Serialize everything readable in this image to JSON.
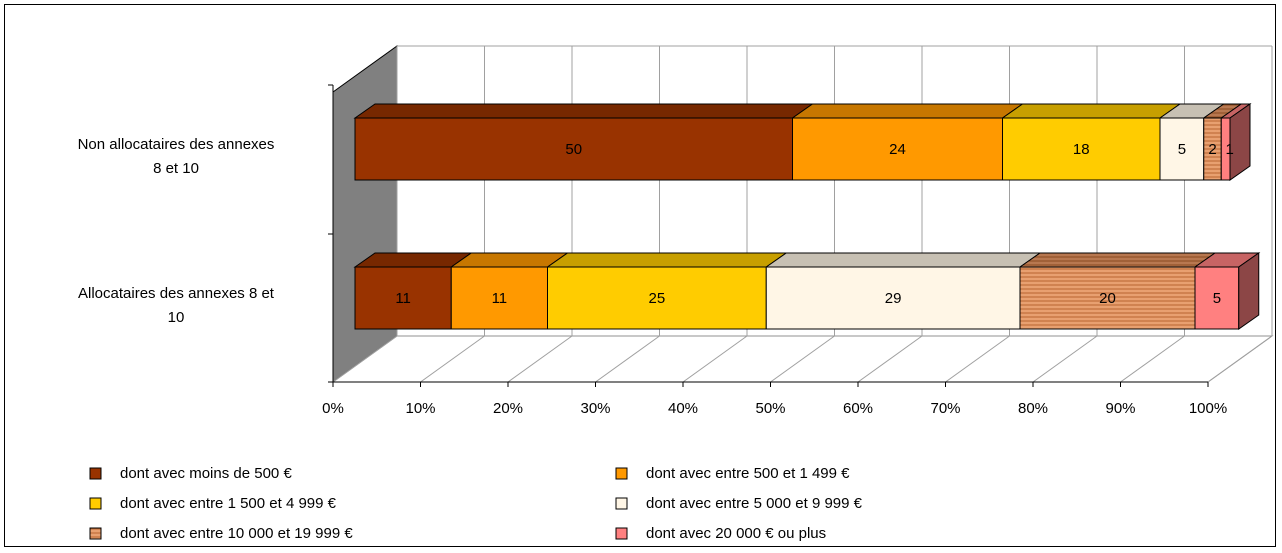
{
  "chart_data": {
    "type": "bar",
    "orientation": "horizontal",
    "stacked": "100%",
    "three_d": true,
    "grid": true,
    "legend_position": "bottom",
    "categories": [
      "Non allocataires des annexes 8 et 10",
      "Allocataires des annexes 8 et 10"
    ],
    "category_lines": [
      [
        "Non allocataires des annexes",
        "8 et 10"
      ],
      [
        "Allocataires des annexes 8 et",
        "10"
      ]
    ],
    "x_ticks": [
      "0%",
      "10%",
      "20%",
      "30%",
      "40%",
      "50%",
      "60%",
      "70%",
      "80%",
      "90%",
      "100%"
    ],
    "xlim": [
      0,
      100
    ],
    "series": [
      {
        "name": "dont avec moins de 500 €",
        "values": [
          50,
          11
        ],
        "color": "#993300",
        "pattern": "none"
      },
      {
        "name": "dont avec entre 500 et 1 499 €",
        "values": [
          24,
          11
        ],
        "color": "#FF9900",
        "pattern": "none"
      },
      {
        "name": "dont avec entre 1 500 et 4 999 €",
        "values": [
          18,
          25
        ],
        "color": "#FFCC00",
        "pattern": "none"
      },
      {
        "name": "dont avec entre 5 000 et 9 999 €",
        "values": [
          5,
          29
        ],
        "color": "#FFF6E6",
        "pattern": "none"
      },
      {
        "name": "dont avec entre 10 000 et 19 999 €",
        "values": [
          2,
          20
        ],
        "color": "#E8A070",
        "pattern": "stripes"
      },
      {
        "name": "dont avec 20 000 € ou plus",
        "values": [
          1,
          5
        ],
        "color": "#FF8080",
        "pattern": "none"
      }
    ]
  }
}
